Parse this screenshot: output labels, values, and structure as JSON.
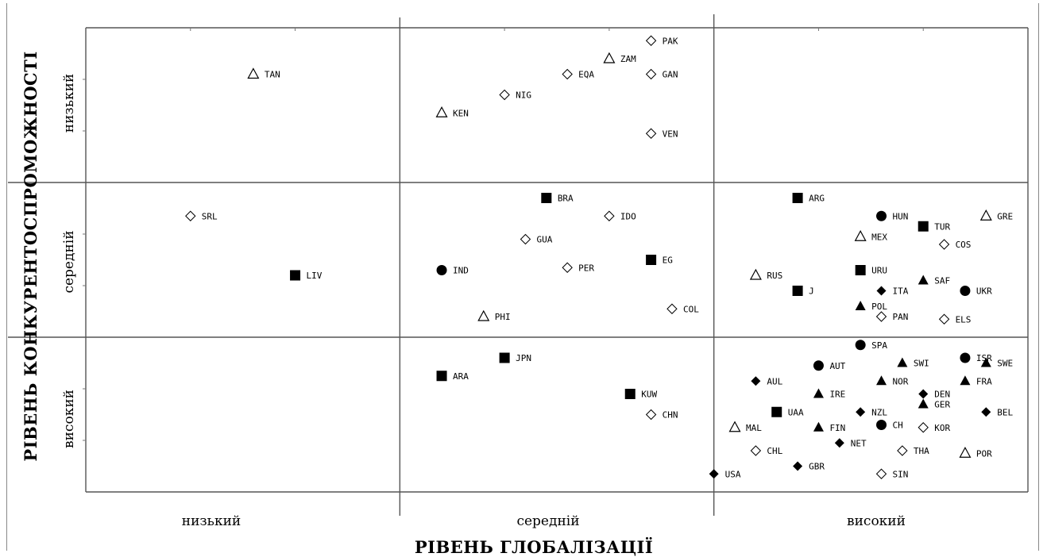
{
  "chart_data": {
    "type": "scatter",
    "title": "",
    "xlabel": "РІВЕНЬ ГЛОБАЛІЗАЦІЇ",
    "ylabel": "РІВЕНЬ КОНКУРЕНТОСПРОМОЖНОСТІ",
    "x_categories": [
      "низький",
      "середній",
      "високий"
    ],
    "y_categories": [
      "низький",
      "середній",
      "високий"
    ],
    "xlim": [
      0,
      9
    ],
    "ylim": [
      0,
      9
    ],
    "grid": false,
    "marker_legend": {
      "open-triangle": "open triangle",
      "open-diamond": "open diamond",
      "filled-square": "filled square",
      "filled-circle": "filled circle",
      "filled-triangle": "filled triangle",
      "filled-diamond": "filled diamond"
    },
    "points": [
      {
        "label": "TAN",
        "marker": "open-triangle",
        "x": 1.6,
        "y": 8.1
      },
      {
        "label": "PAK",
        "marker": "open-diamond",
        "x": 5.4,
        "y": 8.75
      },
      {
        "label": "ZAM",
        "marker": "open-triangle",
        "x": 5.0,
        "y": 8.4
      },
      {
        "label": "EQA",
        "marker": "open-diamond",
        "x": 4.6,
        "y": 8.1
      },
      {
        "label": "GAN",
        "marker": "open-diamond",
        "x": 5.4,
        "y": 8.1
      },
      {
        "label": "NIG",
        "marker": "open-diamond",
        "x": 4.0,
        "y": 7.7
      },
      {
        "label": "KEN",
        "marker": "open-triangle",
        "x": 3.4,
        "y": 7.35
      },
      {
        "label": "VEN",
        "marker": "open-diamond",
        "x": 5.4,
        "y": 6.95
      },
      {
        "label": "SRL",
        "marker": "open-diamond",
        "x": 1.0,
        "y": 5.35
      },
      {
        "label": "LIV",
        "marker": "filled-square",
        "x": 2.0,
        "y": 4.2
      },
      {
        "label": "BRA",
        "marker": "filled-square",
        "x": 4.4,
        "y": 5.7
      },
      {
        "label": "IDO",
        "marker": "open-diamond",
        "x": 5.0,
        "y": 5.35
      },
      {
        "label": "GUA",
        "marker": "open-diamond",
        "x": 4.2,
        "y": 4.9
      },
      {
        "label": "EG",
        "marker": "filled-square",
        "x": 5.4,
        "y": 4.5
      },
      {
        "label": "IND",
        "marker": "filled-circle",
        "x": 3.4,
        "y": 4.3
      },
      {
        "label": "PER",
        "marker": "open-diamond",
        "x": 4.6,
        "y": 4.35
      },
      {
        "label": "COL",
        "marker": "open-diamond",
        "x": 5.6,
        "y": 3.55
      },
      {
        "label": "PHI",
        "marker": "open-triangle",
        "x": 3.8,
        "y": 3.4
      },
      {
        "label": "ARG",
        "marker": "filled-square",
        "x": 6.8,
        "y": 5.7
      },
      {
        "label": "HUN",
        "marker": "filled-circle",
        "x": 7.6,
        "y": 5.35
      },
      {
        "label": "GRE",
        "marker": "open-triangle",
        "x": 8.6,
        "y": 5.35
      },
      {
        "label": "TUR",
        "marker": "filled-square",
        "x": 8.0,
        "y": 5.15
      },
      {
        "label": "MEX",
        "marker": "open-triangle",
        "x": 7.4,
        "y": 4.95
      },
      {
        "label": "COS",
        "marker": "open-diamond",
        "x": 8.2,
        "y": 4.8
      },
      {
        "label": "RUS",
        "marker": "open-triangle",
        "x": 6.4,
        "y": 4.2
      },
      {
        "label": "URU",
        "marker": "filled-square",
        "x": 7.4,
        "y": 4.3
      },
      {
        "label": "SAF",
        "marker": "filled-triangle",
        "x": 8.0,
        "y": 4.1
      },
      {
        "label": "J",
        "marker": "filled-square",
        "x": 6.8,
        "y": 3.9
      },
      {
        "label": "ITA",
        "marker": "filled-diamond",
        "x": 7.6,
        "y": 3.9
      },
      {
        "label": "UKR",
        "marker": "filled-circle",
        "x": 8.4,
        "y": 3.9
      },
      {
        "label": "POL",
        "marker": "filled-triangle",
        "x": 7.4,
        "y": 3.6
      },
      {
        "label": "PAN",
        "marker": "open-diamond",
        "x": 7.6,
        "y": 3.4
      },
      {
        "label": "ELS",
        "marker": "open-diamond",
        "x": 8.2,
        "y": 3.35
      },
      {
        "label": "JPN",
        "marker": "filled-square",
        "x": 4.0,
        "y": 2.6
      },
      {
        "label": "ARA",
        "marker": "filled-square",
        "x": 3.4,
        "y": 2.25
      },
      {
        "label": "KUW",
        "marker": "filled-square",
        "x": 5.2,
        "y": 1.9
      },
      {
        "label": "CHN",
        "marker": "open-diamond",
        "x": 5.4,
        "y": 1.5
      },
      {
        "label": "SPA",
        "marker": "filled-circle",
        "x": 7.4,
        "y": 2.85
      },
      {
        "label": "ISR",
        "marker": "filled-circle",
        "x": 8.4,
        "y": 2.6
      },
      {
        "label": "SWE",
        "marker": "filled-triangle",
        "x": 8.6,
        "y": 2.5
      },
      {
        "label": "SWI",
        "marker": "filled-triangle",
        "x": 7.8,
        "y": 2.5
      },
      {
        "label": "AUT",
        "marker": "filled-circle",
        "x": 7.0,
        "y": 2.45
      },
      {
        "label": "AUL",
        "marker": "filled-diamond",
        "x": 6.4,
        "y": 2.15
      },
      {
        "label": "NOR",
        "marker": "filled-triangle",
        "x": 7.6,
        "y": 2.15
      },
      {
        "label": "FRA",
        "marker": "filled-triangle",
        "x": 8.4,
        "y": 2.15
      },
      {
        "label": "IRE",
        "marker": "filled-triangle",
        "x": 7.0,
        "y": 1.9
      },
      {
        "label": "DEN",
        "marker": "filled-diamond",
        "x": 8.0,
        "y": 1.9
      },
      {
        "label": "GER",
        "marker": "filled-triangle",
        "x": 8.0,
        "y": 1.7
      },
      {
        "label": "BEL",
        "marker": "filled-diamond",
        "x": 8.6,
        "y": 1.55
      },
      {
        "label": "UAA",
        "marker": "filled-square",
        "x": 6.6,
        "y": 1.55
      },
      {
        "label": "NZL",
        "marker": "filled-diamond",
        "x": 7.4,
        "y": 1.55
      },
      {
        "label": "MAL",
        "marker": "open-triangle",
        "x": 6.2,
        "y": 1.25
      },
      {
        "label": "FIN",
        "marker": "filled-triangle",
        "x": 7.0,
        "y": 1.25
      },
      {
        "label": "CH",
        "marker": "filled-circle",
        "x": 7.6,
        "y": 1.3
      },
      {
        "label": "KOR",
        "marker": "open-diamond",
        "x": 8.0,
        "y": 1.25
      },
      {
        "label": "NET",
        "marker": "filled-diamond",
        "x": 7.2,
        "y": 0.95
      },
      {
        "label": "CHL",
        "marker": "open-diamond",
        "x": 6.4,
        "y": 0.8
      },
      {
        "label": "THA",
        "marker": "open-diamond",
        "x": 7.8,
        "y": 0.8
      },
      {
        "label": "POR",
        "marker": "open-triangle",
        "x": 8.4,
        "y": 0.75
      },
      {
        "label": "GBR",
        "marker": "filled-diamond",
        "x": 6.8,
        "y": 0.5
      },
      {
        "label": "SIN",
        "marker": "open-diamond",
        "x": 7.6,
        "y": 0.35
      },
      {
        "label": "USA",
        "marker": "filled-diamond",
        "x": 6.0,
        "y": 0.35
      }
    ]
  }
}
